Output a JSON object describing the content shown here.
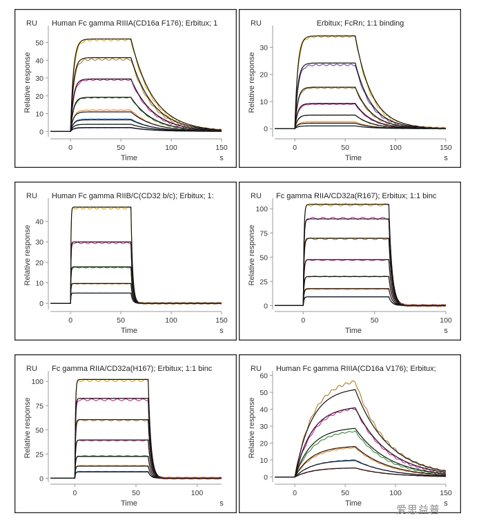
{
  "watermark": "爱思益普",
  "chart_data": [
    {
      "type": "line",
      "title": "Human Fc gamma RIIIA(CD16a F176); Erbitux; 1",
      "unit": "RU",
      "xlabel": "Time",
      "xunit": "s",
      "ylabel": "Relative response",
      "xlim": [
        -20,
        150
      ],
      "ylim": [
        -3,
        58
      ],
      "xticks": [
        0,
        50,
        100,
        150
      ],
      "yticks": [
        0,
        10,
        20,
        30,
        40,
        50
      ],
      "assoc_end": 60,
      "ka": 0.35,
      "kd": 0.045,
      "series": [
        {
          "name": "",
          "plateau": 51.5,
          "fit": 52.0,
          "color": "#e8a800"
        },
        {
          "name": "",
          "plateau": 40.5,
          "fit": 41.5,
          "color": "#b07a20"
        },
        {
          "name": "",
          "plateau": 29.0,
          "fit": 29.5,
          "color": "#d0209a"
        },
        {
          "name": "",
          "plateau": 19.0,
          "fit": 19.2,
          "color": "#2d8a2d"
        },
        {
          "name": "",
          "plateau": 12.0,
          "fit": 11.0,
          "color": "#f08020"
        },
        {
          "name": "",
          "plateau": 7.0,
          "fit": 6.5,
          "color": "#2b70d0"
        },
        {
          "name": "",
          "plateau": 4.0,
          "fit": 4.0,
          "color": "#30b0b0"
        },
        {
          "name": "",
          "plateau": 2.0,
          "fit": 2.2,
          "color": "#6b3fa0"
        }
      ]
    },
    {
      "type": "line",
      "title": "Erbitux; FcRn; 1:1 binding",
      "unit": "RU",
      "xlabel": "Time",
      "xunit": "s",
      "ylabel": "Relative response",
      "xlim": [
        -20,
        150
      ],
      "ylim": [
        -3,
        37
      ],
      "xticks": [
        0,
        50,
        100,
        150
      ],
      "yticks": [
        0,
        10,
        20,
        30
      ],
      "assoc_end": 60,
      "ka": 0.35,
      "kd": 0.06,
      "series": [
        {
          "name": "",
          "plateau": 34.0,
          "fit": 34.2,
          "color": "#e8a800"
        },
        {
          "name": "",
          "plateau": 23.5,
          "fit": 24.2,
          "color": "#6b3fa0"
        },
        {
          "name": "",
          "plateau": 15.0,
          "fit": 15.3,
          "color": "#b07a20"
        },
        {
          "name": "",
          "plateau": 9.0,
          "fit": 9.3,
          "color": "#d0209a"
        },
        {
          "name": "",
          "plateau": 5.0,
          "fit": 5.0,
          "color": "#2d8a2d"
        },
        {
          "name": "",
          "plateau": 2.5,
          "fit": 2.0,
          "color": "#f08020"
        },
        {
          "name": "",
          "plateau": 1.0,
          "fit": 1.0,
          "color": "#30b0b0"
        }
      ]
    },
    {
      "type": "line",
      "title": "Human Fc gamma RIIB/C(CD32 b/c); Erbitux; 1:",
      "unit": "RU",
      "xlabel": "Time",
      "xunit": "s",
      "ylabel": "Relative response",
      "xlim": [
        -20,
        150
      ],
      "ylim": [
        -3,
        50
      ],
      "xticks": [
        0,
        50,
        100,
        150
      ],
      "yticks": [
        0,
        10,
        20,
        30,
        40
      ],
      "assoc_end": 60,
      "ka": 2.5,
      "kd": 0.6,
      "series": [
        {
          "name": "",
          "plateau": 46.5,
          "fit": 47.0,
          "color": "#e8a800"
        },
        {
          "name": "",
          "plateau": 29.5,
          "fit": 30.0,
          "color": "#d0209a"
        },
        {
          "name": "",
          "plateau": 17.5,
          "fit": 17.8,
          "color": "#2d8a2d"
        },
        {
          "name": "",
          "plateau": 9.5,
          "fit": 9.7,
          "color": "#f08020"
        },
        {
          "name": "",
          "plateau": 5.0,
          "fit": 5.0,
          "color": "#2b70d0"
        }
      ]
    },
    {
      "type": "line",
      "title": "Fc gamma RIIA/CD32a(R167); Erbitux; 1:1 binc",
      "unit": "RU",
      "xlabel": "Time",
      "xunit": "s",
      "ylabel": "Relative response",
      "xlim": [
        -20,
        100
      ],
      "ylim": [
        -4,
        108
      ],
      "xticks": [
        0,
        50,
        100
      ],
      "yticks": [
        0,
        25,
        50,
        75,
        100
      ],
      "assoc_end": 60,
      "ka": 2.0,
      "kd": 0.45,
      "series": [
        {
          "name": "",
          "plateau": 104.0,
          "fit": 104.5,
          "color": "#e8a800"
        },
        {
          "name": "",
          "plateau": 90.0,
          "fit": 89.5,
          "color": "#d0209a"
        },
        {
          "name": "",
          "plateau": 69.0,
          "fit": 69.5,
          "color": "#b07a20"
        },
        {
          "name": "",
          "plateau": 47.0,
          "fit": 47.5,
          "color": "#d0209a"
        },
        {
          "name": "",
          "plateau": 30.0,
          "fit": 30.0,
          "color": "#2d8a2d"
        },
        {
          "name": "",
          "plateau": 17.0,
          "fit": 17.5,
          "color": "#f08020"
        },
        {
          "name": "",
          "plateau": 9.0,
          "fit": 9.0,
          "color": "#2b70d0"
        }
      ]
    },
    {
      "type": "line",
      "title": "Fc gamma RIIA/CD32a(H167); Erbitux; 1:1 binc",
      "unit": "RU",
      "xlabel": "Time",
      "xunit": "s",
      "ylabel": "Relative response",
      "xlim": [
        -20,
        120
      ],
      "ylim": [
        -4,
        108
      ],
      "xticks": [
        0,
        50,
        100
      ],
      "yticks": [
        0,
        25,
        50,
        75,
        100
      ],
      "assoc_end": 60,
      "ka": 2.0,
      "kd": 0.45,
      "series": [
        {
          "name": "",
          "plateau": 101.0,
          "fit": 102.0,
          "color": "#e8a800"
        },
        {
          "name": "",
          "plateau": 81.0,
          "fit": 82.5,
          "color": "#d0209a"
        },
        {
          "name": "",
          "plateau": 60.0,
          "fit": 60.5,
          "color": "#b07a20"
        },
        {
          "name": "",
          "plateau": 39.0,
          "fit": 39.5,
          "color": "#d0209a"
        },
        {
          "name": "",
          "plateau": 23.0,
          "fit": 22.5,
          "color": "#2d8a2d"
        },
        {
          "name": "",
          "plateau": 13.0,
          "fit": 12.5,
          "color": "#f08020"
        },
        {
          "name": "",
          "plateau": 7.0,
          "fit": 6.5,
          "color": "#2b70d0"
        }
      ]
    },
    {
      "type": "line",
      "title": "Human Fc gamma RIIIA(CD16a V176); Erbitux; ",
      "unit": "RU",
      "xlabel": "Time",
      "xunit": "s",
      "ylabel": "Relative response",
      "xlim": [
        -20,
        150
      ],
      "ylim": [
        -3,
        61
      ],
      "xticks": [
        0,
        50,
        100,
        150
      ],
      "yticks": [
        0,
        10,
        20,
        30,
        40,
        50,
        60
      ],
      "assoc_end": 60,
      "ka": 0.06,
      "kd": 0.03,
      "series": [
        {
          "name": "",
          "plateau": 58.5,
          "fit": 53.0,
          "color": "#b07a20"
        },
        {
          "name": "",
          "plateau": 42.0,
          "fit": 42.0,
          "color": "#d0209a"
        },
        {
          "name": "",
          "plateau": 28.0,
          "fit": 29.5,
          "color": "#2d8a2d"
        },
        {
          "name": "",
          "plateau": 18.0,
          "fit": 18.5,
          "color": "#f08020"
        },
        {
          "name": "",
          "plateau": 10.5,
          "fit": 10.0,
          "color": "#2b70d0"
        },
        {
          "name": "",
          "plateau": 5.5,
          "fit": 5.5,
          "color": "#d03030"
        }
      ]
    }
  ]
}
